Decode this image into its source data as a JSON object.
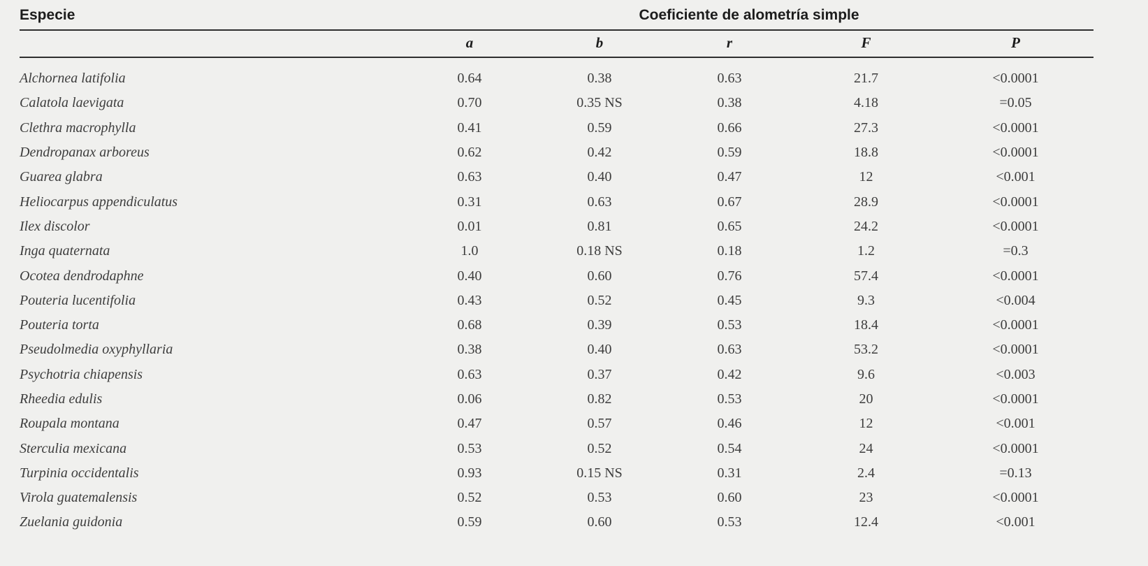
{
  "page": {
    "background_color": "#f0f0ee",
    "text_color": "#3d3d3d",
    "rule_color": "#2e2e2e"
  },
  "table": {
    "especie_header": "Especie",
    "group_header": "Coeficiente de alometría simple",
    "sub_headers": [
      "a",
      "b",
      "r",
      "F",
      "P"
    ],
    "rows": [
      {
        "species": "Alchornea latifolia",
        "a": "0.64",
        "b": "0.38",
        "r": "0.63",
        "F": "21.7",
        "P": "<0.0001"
      },
      {
        "species": "Calatola laevigata",
        "a": "0.70",
        "b": "0.35 NS",
        "r": "0.38",
        "F": "4.18",
        "P": "=0.05"
      },
      {
        "species": "Clethra macrophylla",
        "a": "0.41",
        "b": "0.59",
        "r": "0.66",
        "F": "27.3",
        "P": "<0.0001"
      },
      {
        "species": "Dendropanax arboreus",
        "a": "0.62",
        "b": "0.42",
        "r": "0.59",
        "F": "18.8",
        "P": "<0.0001"
      },
      {
        "species": "Guarea glabra",
        "a": "0.63",
        "b": "0.40",
        "r": "0.47",
        "F": "12",
        "P": "<0.001"
      },
      {
        "species": "Heliocarpus appendiculatus",
        "a": "0.31",
        "b": "0.63",
        "r": "0.67",
        "F": "28.9",
        "P": "<0.0001"
      },
      {
        "species": "Ilex discolor",
        "a": "0.01",
        "b": "0.81",
        "r": "0.65",
        "F": "24.2",
        "P": "<0.0001"
      },
      {
        "species": "Inga quaternata",
        "a": "1.0",
        "b": "0.18 NS",
        "r": "0.18",
        "F": "1.2",
        "P": "=0.3"
      },
      {
        "species": "Ocotea dendrodaphne",
        "a": "0.40",
        "b": "0.60",
        "r": "0.76",
        "F": "57.4",
        "P": "<0.0001"
      },
      {
        "species": "Pouteria lucentifolia",
        "a": "0.43",
        "b": "0.52",
        "r": "0.45",
        "F": "9.3",
        "P": "<0.004"
      },
      {
        "species": "Pouteria torta",
        "a": "0.68",
        "b": "0.39",
        "r": "0.53",
        "F": "18.4",
        "P": "<0.0001"
      },
      {
        "species": "Pseudolmedia oxyphyllaria",
        "a": "0.38",
        "b": "0.40",
        "r": "0.63",
        "F": "53.2",
        "P": "<0.0001"
      },
      {
        "species": "Psychotria chiapensis",
        "a": "0.63",
        "b": "0.37",
        "r": "0.42",
        "F": "9.6",
        "P": "<0.003"
      },
      {
        "species": "Rheedia edulis",
        "a": "0.06",
        "b": "0.82",
        "r": "0.53",
        "F": "20",
        "P": "<0.0001"
      },
      {
        "species": "Roupala montana",
        "a": "0.47",
        "b": "0.57",
        "r": "0.46",
        "F": "12",
        "P": "<0.001"
      },
      {
        "species": "Sterculia mexicana",
        "a": "0.53",
        "b": "0.52",
        "r": "0.54",
        "F": "24",
        "P": "<0.0001"
      },
      {
        "species": "Turpinia occidentalis",
        "a": "0.93",
        "b": "0.15 NS",
        "r": "0.31",
        "F": "2.4",
        "P": "=0.13"
      },
      {
        "species": "Virola guatemalensis",
        "a": "0.52",
        "b": "0.53",
        "r": "0.60",
        "F": "23",
        "P": "<0.0001"
      },
      {
        "species": "Zuelania guidonia",
        "a": "0.59",
        "b": "0.60",
        "r": "0.53",
        "F": "12.4",
        "P": "<0.001"
      }
    ]
  }
}
